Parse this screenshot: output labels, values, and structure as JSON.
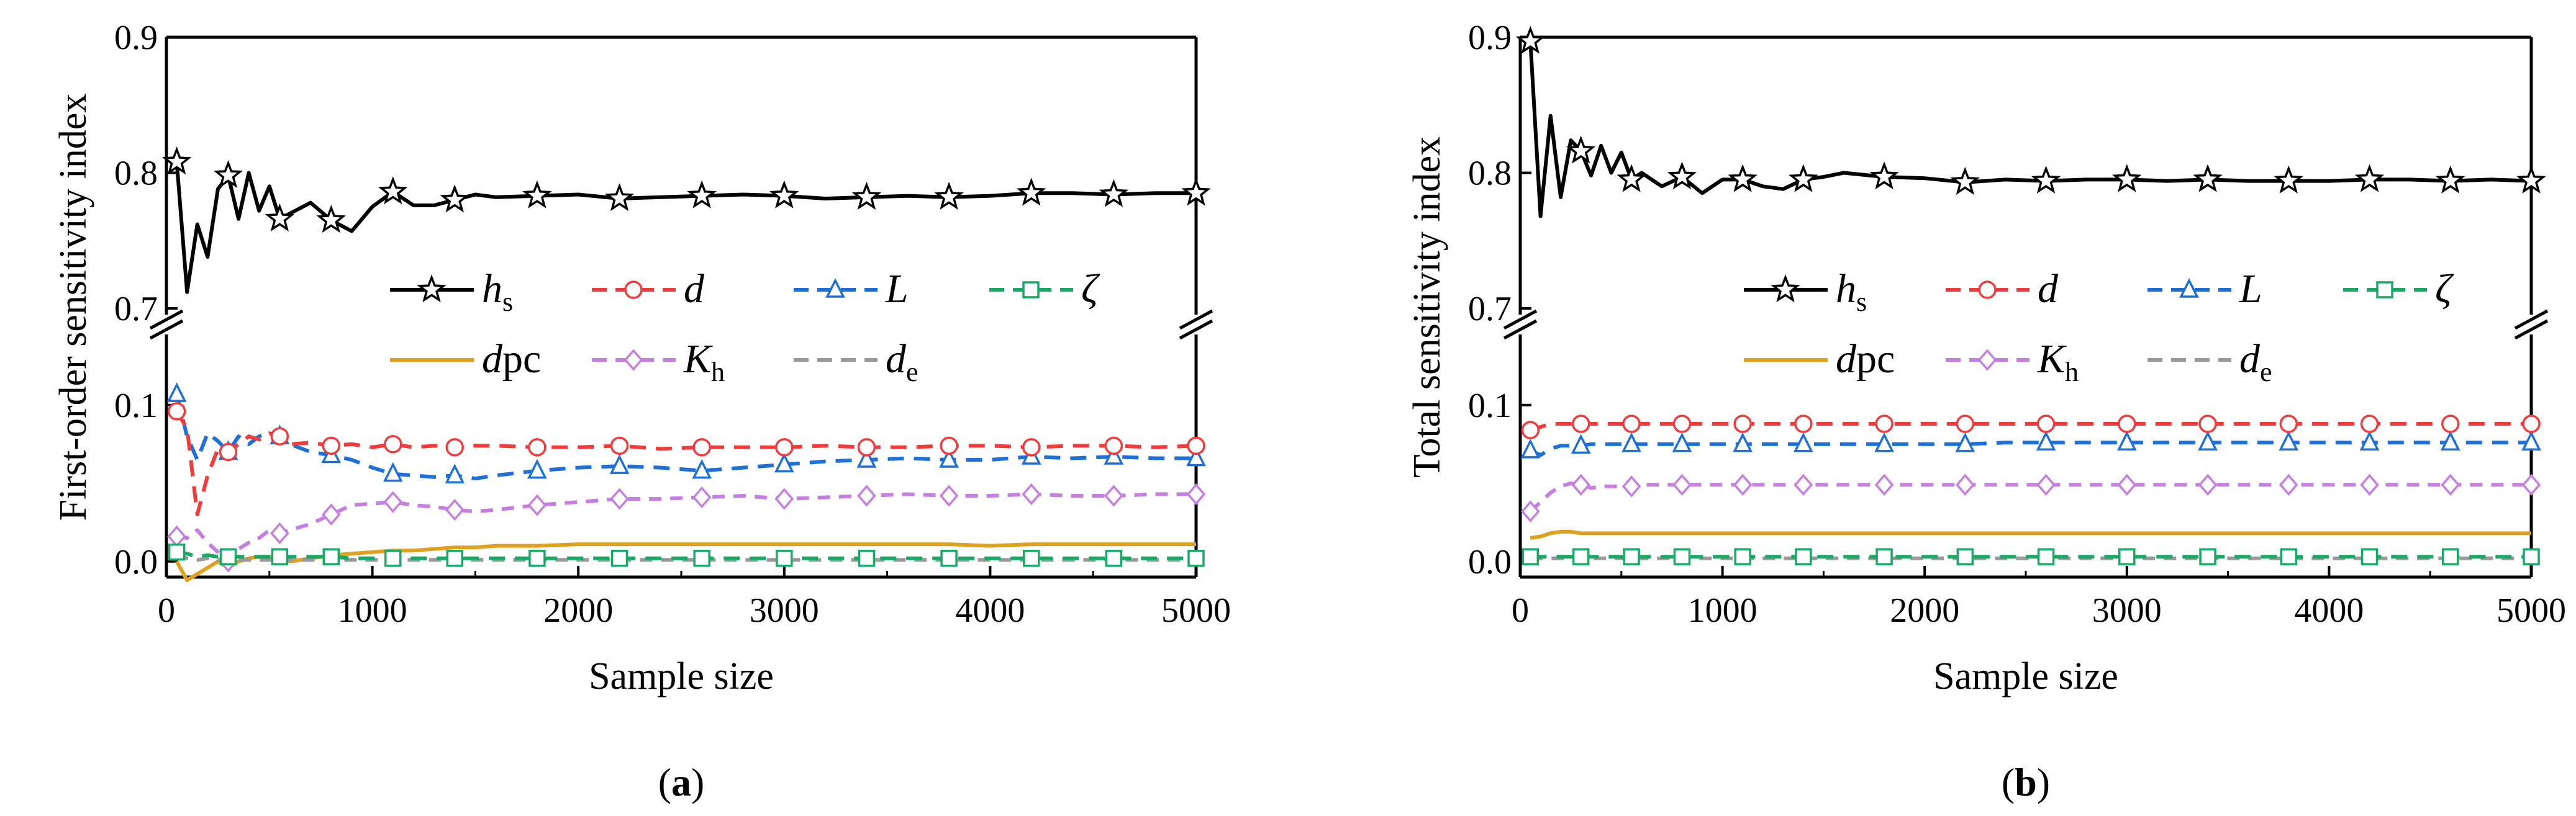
{
  "colors": {
    "hs": "#000000",
    "d": "#f03c3c",
    "L": "#1f6fd8",
    "zeta": "#1aa866",
    "dpc": "#e0a020",
    "Kh": "#c57fe0",
    "de": "#9a9a9a"
  },
  "chart_data": [
    {
      "type": "line",
      "caption": "a",
      "xlabel": "Sample size",
      "ylabel": "First-order sensitivity index",
      "xlim": [
        0,
        5000
      ],
      "xticks": [
        0,
        1000,
        2000,
        3000,
        4000,
        5000
      ],
      "ylim_upper": [
        0.7,
        0.9
      ],
      "yticks_upper": [
        "0.7",
        "0.8",
        "0.9"
      ],
      "ylim_lower": [
        -0.01,
        0.14
      ],
      "yticks_lower": [
        "0.0",
        "0.1"
      ],
      "legend_placement": "center-right",
      "legend": [
        {
          "key": "hs",
          "main": "h",
          "sub": "s",
          "marker": "star",
          "dash": "solid"
        },
        {
          "key": "d",
          "main": "d",
          "sub": "",
          "marker": "circle",
          "dash": "dashed"
        },
        {
          "key": "L",
          "main": "L",
          "sub": "",
          "marker": "triangle",
          "dash": "dashed"
        },
        {
          "key": "zeta",
          "main": "ζ",
          "sub": "",
          "marker": "square",
          "dash": "dashed"
        },
        {
          "key": "dpc",
          "main": "d",
          "sub": "",
          "suffix": "pc",
          "marker": "none",
          "dash": "solid"
        },
        {
          "key": "Kh",
          "main": "K",
          "sub": "h",
          "marker": "diamond",
          "dash": "dashed"
        },
        {
          "key": "de",
          "main": "d",
          "sub": "e",
          "marker": "none",
          "dash": "dashed"
        }
      ],
      "x": [
        50,
        100,
        150,
        200,
        250,
        300,
        350,
        400,
        450,
        500,
        550,
        600,
        700,
        800,
        900,
        1000,
        1100,
        1200,
        1300,
        1400,
        1500,
        1600,
        1800,
        2000,
        2200,
        2400,
        2600,
        2800,
        3000,
        3200,
        3400,
        3600,
        3800,
        4000,
        4200,
        4400,
        4600,
        4800,
        5000
      ],
      "series": [
        {
          "name": "hs",
          "values": [
            0.808,
            0.712,
            0.762,
            0.738,
            0.788,
            0.798,
            0.766,
            0.8,
            0.772,
            0.79,
            0.766,
            0.77,
            0.778,
            0.765,
            0.757,
            0.775,
            0.786,
            0.776,
            0.776,
            0.78,
            0.784,
            0.782,
            0.783,
            0.784,
            0.781,
            0.782,
            0.783,
            0.784,
            0.783,
            0.781,
            0.782,
            0.783,
            0.782,
            0.783,
            0.785,
            0.785,
            0.784,
            0.785,
            0.785
          ]
        },
        {
          "name": "d",
          "values": [
            0.096,
            0.085,
            0.03,
            0.055,
            0.072,
            0.07,
            0.075,
            0.08,
            0.078,
            0.082,
            0.08,
            0.075,
            0.076,
            0.074,
            0.075,
            0.073,
            0.075,
            0.073,
            0.074,
            0.073,
            0.074,
            0.074,
            0.073,
            0.073,
            0.074,
            0.072,
            0.073,
            0.073,
            0.073,
            0.074,
            0.073,
            0.073,
            0.074,
            0.074,
            0.073,
            0.074,
            0.074,
            0.073,
            0.074
          ]
        },
        {
          "name": "L",
          "values": [
            0.107,
            0.08,
            0.065,
            0.082,
            0.077,
            0.07,
            0.08,
            0.075,
            0.08,
            0.082,
            0.08,
            0.075,
            0.07,
            0.068,
            0.065,
            0.06,
            0.056,
            0.055,
            0.054,
            0.055,
            0.053,
            0.055,
            0.058,
            0.06,
            0.061,
            0.06,
            0.058,
            0.06,
            0.062,
            0.064,
            0.065,
            0.066,
            0.065,
            0.065,
            0.067,
            0.066,
            0.067,
            0.066,
            0.066
          ]
        },
        {
          "name": "zeta",
          "values": [
            0.006,
            0.005,
            0.003,
            0.004,
            0.003,
            0.003,
            0.003,
            0.003,
            0.003,
            0.003,
            0.003,
            0.003,
            0.003,
            0.003,
            0.002,
            0.002,
            0.002,
            0.002,
            0.002,
            0.002,
            0.002,
            0.002,
            0.002,
            0.002,
            0.002,
            0.002,
            0.002,
            0.002,
            0.002,
            0.002,
            0.002,
            0.002,
            0.002,
            0.002,
            0.002,
            0.002,
            0.002,
            0.002,
            0.002
          ]
        },
        {
          "name": "dpc",
          "values": [
            0.0,
            -0.012,
            -0.008,
            -0.004,
            0.0,
            -0.004,
            0.0,
            0.002,
            0.003,
            0.003,
            0.002,
            0.0,
            0.002,
            0.004,
            0.005,
            0.006,
            0.007,
            0.007,
            0.008,
            0.009,
            0.009,
            0.01,
            0.01,
            0.011,
            0.011,
            0.011,
            0.011,
            0.011,
            0.011,
            0.011,
            0.011,
            0.011,
            0.011,
            0.01,
            0.011,
            0.011,
            0.011,
            0.011,
            0.011
          ]
        },
        {
          "name": "Kh",
          "values": [
            0.016,
            0.015,
            0.02,
            0.012,
            0.006,
            0.0,
            0.008,
            0.012,
            0.015,
            0.02,
            0.018,
            0.02,
            0.024,
            0.03,
            0.036,
            0.037,
            0.038,
            0.036,
            0.035,
            0.033,
            0.032,
            0.033,
            0.036,
            0.038,
            0.04,
            0.04,
            0.041,
            0.042,
            0.04,
            0.041,
            0.042,
            0.043,
            0.042,
            0.042,
            0.043,
            0.042,
            0.042,
            0.043,
            0.043
          ]
        },
        {
          "name": "de",
          "values": [
            0.005,
            0.002,
            0.001,
            0.002,
            0.001,
            0.001,
            0.001,
            0.001,
            0.001,
            0.001,
            0.001,
            0.001,
            0.001,
            0.001,
            0.001,
            0.001,
            0.001,
            0.001,
            0.001,
            0.001,
            0.001,
            0.001,
            0.001,
            0.001,
            0.001,
            0.001,
            0.001,
            0.001,
            0.001,
            0.001,
            0.001,
            0.001,
            0.001,
            0.001,
            0.001,
            0.001,
            0.001,
            0.001,
            0.001
          ]
        }
      ]
    },
    {
      "type": "line",
      "caption": "b",
      "xlabel": "Sample size",
      "ylabel": "Total sensitivity index",
      "xlim": [
        0,
        5000
      ],
      "xticks": [
        0,
        1000,
        2000,
        3000,
        4000,
        5000
      ],
      "ylim_upper": [
        0.7,
        0.9
      ],
      "yticks_upper": [
        "0.7",
        "0.8",
        "0.9"
      ],
      "ylim_lower": [
        -0.01,
        0.14
      ],
      "yticks_lower": [
        "0.0",
        "0.1"
      ],
      "legend_placement": "center-right",
      "legend": [
        {
          "key": "hs",
          "main": "h",
          "sub": "s",
          "marker": "star",
          "dash": "solid"
        },
        {
          "key": "d",
          "main": "d",
          "sub": "",
          "marker": "circle",
          "dash": "dashed"
        },
        {
          "key": "L",
          "main": "L",
          "sub": "",
          "marker": "triangle",
          "dash": "dashed"
        },
        {
          "key": "zeta",
          "main": "ζ",
          "sub": "",
          "marker": "square",
          "dash": "dashed"
        },
        {
          "key": "dpc",
          "main": "d",
          "sub": "",
          "suffix": "pc",
          "marker": "none",
          "dash": "solid"
        },
        {
          "key": "Kh",
          "main": "K",
          "sub": "h",
          "marker": "diamond",
          "dash": "dashed"
        },
        {
          "key": "de",
          "main": "d",
          "sub": "e",
          "marker": "none",
          "dash": "dashed"
        }
      ],
      "x": [
        50,
        100,
        150,
        200,
        250,
        300,
        350,
        400,
        450,
        500,
        550,
        600,
        700,
        800,
        900,
        1000,
        1100,
        1200,
        1300,
        1400,
        1500,
        1600,
        1800,
        2000,
        2200,
        2400,
        2600,
        2800,
        3000,
        3200,
        3400,
        3600,
        3800,
        4000,
        4200,
        4400,
        4600,
        4800,
        5000
      ],
      "series": [
        {
          "name": "hs",
          "values": [
            0.897,
            0.768,
            0.842,
            0.782,
            0.824,
            0.816,
            0.798,
            0.82,
            0.8,
            0.815,
            0.795,
            0.8,
            0.79,
            0.797,
            0.785,
            0.795,
            0.795,
            0.79,
            0.788,
            0.795,
            0.797,
            0.8,
            0.797,
            0.796,
            0.793,
            0.795,
            0.794,
            0.795,
            0.795,
            0.794,
            0.795,
            0.794,
            0.794,
            0.794,
            0.795,
            0.795,
            0.794,
            0.795,
            0.794
          ]
        },
        {
          "name": "d",
          "values": [
            0.084,
            0.086,
            0.088,
            0.088,
            0.088,
            0.088,
            0.088,
            0.088,
            0.088,
            0.088,
            0.088,
            0.088,
            0.088,
            0.088,
            0.088,
            0.088,
            0.088,
            0.088,
            0.088,
            0.088,
            0.088,
            0.088,
            0.088,
            0.088,
            0.088,
            0.088,
            0.088,
            0.088,
            0.088,
            0.088,
            0.088,
            0.088,
            0.088,
            0.088,
            0.088,
            0.088,
            0.088,
            0.088,
            0.088
          ]
        },
        {
          "name": "L",
          "values": [
            0.071,
            0.068,
            0.072,
            0.074,
            0.074,
            0.074,
            0.075,
            0.075,
            0.075,
            0.075,
            0.075,
            0.075,
            0.075,
            0.075,
            0.075,
            0.075,
            0.075,
            0.075,
            0.075,
            0.075,
            0.075,
            0.075,
            0.075,
            0.075,
            0.075,
            0.076,
            0.076,
            0.076,
            0.076,
            0.076,
            0.076,
            0.076,
            0.076,
            0.076,
            0.076,
            0.076,
            0.076,
            0.076,
            0.076
          ]
        },
        {
          "name": "zeta",
          "values": [
            0.003,
            0.003,
            0.003,
            0.003,
            0.003,
            0.003,
            0.003,
            0.003,
            0.003,
            0.003,
            0.003,
            0.003,
            0.003,
            0.003,
            0.003,
            0.003,
            0.003,
            0.003,
            0.003,
            0.003,
            0.003,
            0.003,
            0.003,
            0.003,
            0.003,
            0.003,
            0.003,
            0.003,
            0.003,
            0.003,
            0.003,
            0.003,
            0.003,
            0.003,
            0.003,
            0.003,
            0.003,
            0.003,
            0.003
          ]
        },
        {
          "name": "dpc",
          "values": [
            0.015,
            0.016,
            0.018,
            0.019,
            0.019,
            0.018,
            0.018,
            0.018,
            0.018,
            0.018,
            0.018,
            0.018,
            0.018,
            0.018,
            0.018,
            0.018,
            0.018,
            0.018,
            0.018,
            0.018,
            0.018,
            0.018,
            0.018,
            0.018,
            0.018,
            0.018,
            0.018,
            0.018,
            0.018,
            0.018,
            0.018,
            0.018,
            0.018,
            0.018,
            0.018,
            0.018,
            0.018,
            0.018,
            0.018
          ]
        },
        {
          "name": "Kh",
          "values": [
            0.032,
            0.038,
            0.044,
            0.048,
            0.05,
            0.049,
            0.047,
            0.048,
            0.048,
            0.048,
            0.048,
            0.049,
            0.049,
            0.049,
            0.049,
            0.049,
            0.049,
            0.049,
            0.049,
            0.049,
            0.049,
            0.049,
            0.049,
            0.049,
            0.049,
            0.049,
            0.049,
            0.049,
            0.049,
            0.049,
            0.049,
            0.049,
            0.049,
            0.049,
            0.049,
            0.049,
            0.049,
            0.049,
            0.049
          ]
        },
        {
          "name": "de",
          "values": [
            0.002,
            0.002,
            0.002,
            0.002,
            0.002,
            0.002,
            0.002,
            0.002,
            0.002,
            0.002,
            0.002,
            0.002,
            0.002,
            0.002,
            0.002,
            0.002,
            0.002,
            0.002,
            0.002,
            0.002,
            0.002,
            0.002,
            0.002,
            0.002,
            0.002,
            0.002,
            0.002,
            0.002,
            0.002,
            0.002,
            0.002,
            0.002,
            0.002,
            0.002,
            0.002,
            0.002,
            0.002,
            0.002,
            0.002
          ]
        }
      ]
    }
  ]
}
